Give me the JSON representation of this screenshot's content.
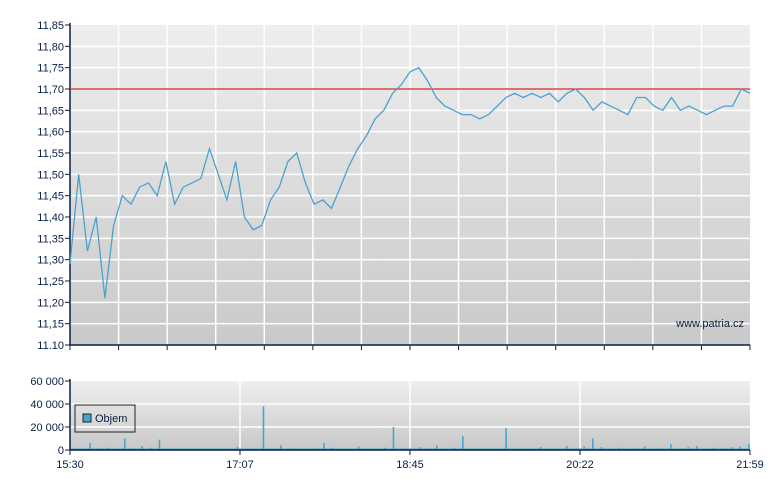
{
  "chart_data": [
    {
      "type": "line",
      "title": "",
      "xlabel": "",
      "ylabel": "",
      "ylim": [
        11.1,
        11.85
      ],
      "y_ticks": [
        "11,85",
        "11,80",
        "11,75",
        "11,70",
        "11,65",
        "11,60",
        "11,55",
        "11,50",
        "11,45",
        "11,40",
        "11,35",
        "11,30",
        "11,25",
        "11,20",
        "11,15",
        "11.10"
      ],
      "reference_line": {
        "value": 11.7,
        "color": "#cc2222"
      },
      "line_color": "#4aa3cc",
      "grid": true,
      "watermark": "www.patria.cz",
      "x": [
        "15:30",
        "15:35",
        "15:40",
        "15:45",
        "15:50",
        "15:55",
        "16:00",
        "16:05",
        "16:10",
        "16:15",
        "16:20",
        "16:25",
        "16:30",
        "16:35",
        "16:40",
        "16:45",
        "16:50",
        "16:55",
        "17:00",
        "17:05",
        "17:10",
        "17:15",
        "17:20",
        "17:25",
        "17:30",
        "17:35",
        "17:40",
        "17:45",
        "17:50",
        "17:55",
        "18:00",
        "18:05",
        "18:10",
        "18:15",
        "18:20",
        "18:25",
        "18:30",
        "18:35",
        "18:40",
        "18:45",
        "18:50",
        "18:55",
        "19:00",
        "19:05",
        "19:10",
        "19:15",
        "19:20",
        "19:25",
        "19:30",
        "19:35",
        "19:40",
        "19:45",
        "19:50",
        "19:55",
        "20:00",
        "20:05",
        "20:10",
        "20:15",
        "20:20",
        "20:25",
        "20:30",
        "20:35",
        "20:40",
        "20:45",
        "20:50",
        "20:55",
        "21:00",
        "21:05",
        "21:10",
        "21:15",
        "21:20",
        "21:25",
        "21:30",
        "21:35",
        "21:40",
        "21:45",
        "21:50",
        "21:55",
        "21:59"
      ],
      "values": [
        11.29,
        11.5,
        11.32,
        11.4,
        11.21,
        11.38,
        11.45,
        11.43,
        11.47,
        11.48,
        11.45,
        11.53,
        11.43,
        11.47,
        11.48,
        11.49,
        11.56,
        11.5,
        11.44,
        11.53,
        11.4,
        11.37,
        11.38,
        11.44,
        11.47,
        11.53,
        11.55,
        11.48,
        11.43,
        11.44,
        11.42,
        11.47,
        11.52,
        11.56,
        11.59,
        11.63,
        11.65,
        11.69,
        11.71,
        11.74,
        11.75,
        11.72,
        11.68,
        11.66,
        11.65,
        11.64,
        11.64,
        11.63,
        11.64,
        11.66,
        11.68,
        11.69,
        11.68,
        11.69,
        11.68,
        11.69,
        11.67,
        11.69,
        11.7,
        11.68,
        11.65,
        11.67,
        11.66,
        11.65,
        11.64,
        11.68,
        11.68,
        11.66,
        11.65,
        11.68,
        11.65,
        11.66,
        11.65,
        11.64,
        11.65,
        11.66,
        11.66,
        11.7,
        11.69
      ],
      "x_ticks": [
        "15:30",
        "17:07",
        "18:45",
        "20:22",
        "21:59"
      ]
    },
    {
      "type": "bar",
      "title": "",
      "legend": [
        "Objem"
      ],
      "legend_position": "upper-left",
      "bar_color": "#4aa3cc",
      "ylim": [
        0,
        60000
      ],
      "y_ticks": [
        "60 000",
        "40 000",
        "20 000",
        "0"
      ],
      "x_ticks": [
        "15:30",
        "17:07",
        "18:45",
        "20:22",
        "21:59"
      ],
      "grid": true,
      "series": [
        {
          "name": "Objem",
          "values": [
            1000,
            500,
            6000,
            1500,
            2000,
            1000,
            10000,
            1500,
            3500,
            2000,
            9000,
            1500,
            800,
            500,
            700,
            300,
            0,
            500,
            1000,
            2500,
            1000,
            500,
            38000,
            1000,
            4000,
            1500,
            500,
            0,
            1500,
            6000,
            2000,
            1000,
            500,
            3000,
            1500,
            500,
            2000,
            20000,
            1500,
            700,
            2500,
            1500,
            4000,
            1000,
            2000,
            12000,
            1500,
            800,
            1000,
            1200,
            19000,
            1000,
            500,
            1200,
            2500,
            800,
            900,
            3500,
            1200,
            3000,
            10000,
            2500,
            1200,
            2000,
            800,
            1500,
            3000,
            1000,
            1500,
            5000,
            1500,
            2500,
            3500,
            1000,
            2000,
            1500,
            2500,
            3000,
            5000
          ]
        }
      ]
    }
  ]
}
